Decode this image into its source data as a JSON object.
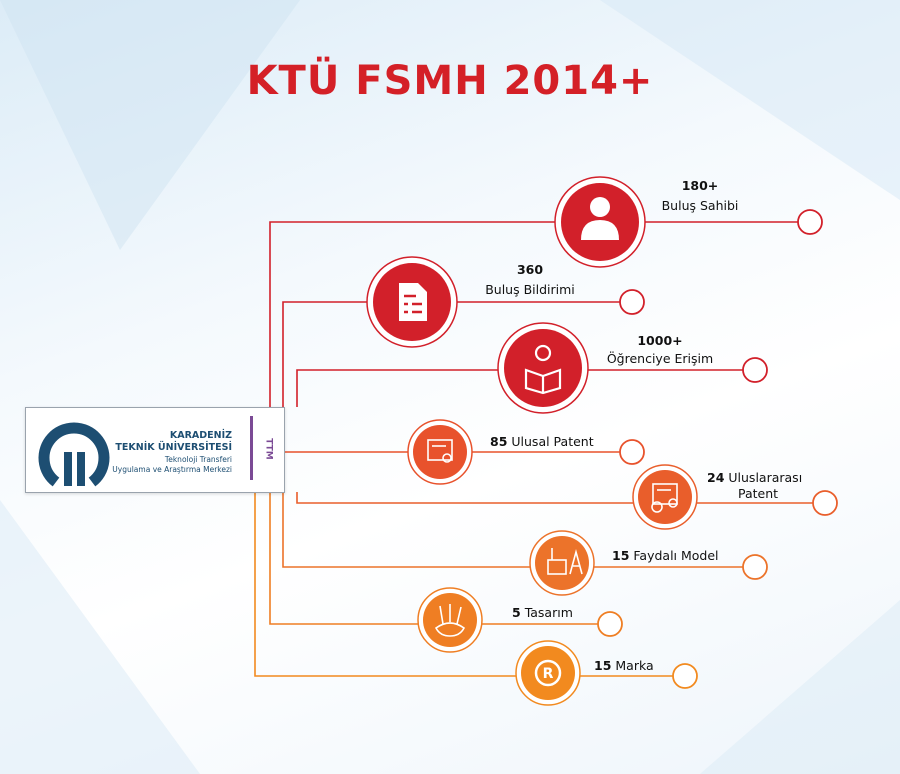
{
  "title": "KTÜ FSMH 2014+",
  "logo": {
    "line1": "KARADENİZ",
    "line2": "TEKNİK ÜNİVERSİTESİ",
    "line3": "Teknoloji Transferi",
    "line4": "Uygulama ve Araştırma Merkezi",
    "side": "TTM"
  },
  "items": [
    {
      "value": "180+",
      "label": "Buluş Sahibi",
      "icon": "person-icon",
      "color": "#d2202a"
    },
    {
      "value": "360",
      "label": "Buluş Bildirimi",
      "icon": "document-icon",
      "color": "#d2202a"
    },
    {
      "value": "1000+",
      "label": "Öğrenciye Erişim",
      "icon": "student-reading-icon",
      "color": "#d2202a"
    },
    {
      "value": "85",
      "label": "Ulusal Patent",
      "icon": "certificate-icon",
      "color": "#e8522c"
    },
    {
      "value": "24",
      "label": "Uluslararası",
      "label2": "Patent",
      "icon": "globe-certificate-icon",
      "color": "#e95e2b"
    },
    {
      "value": "15",
      "label": "Faydalı Model",
      "icon": "tools-icon",
      "color": "#ec732a"
    },
    {
      "value": "5",
      "label": "Tasarım",
      "icon": "design-tools-icon",
      "color": "#ef7e23"
    },
    {
      "value": "15",
      "label": "Marka",
      "icon": "registered-icon",
      "color": "#f28a1f"
    }
  ]
}
